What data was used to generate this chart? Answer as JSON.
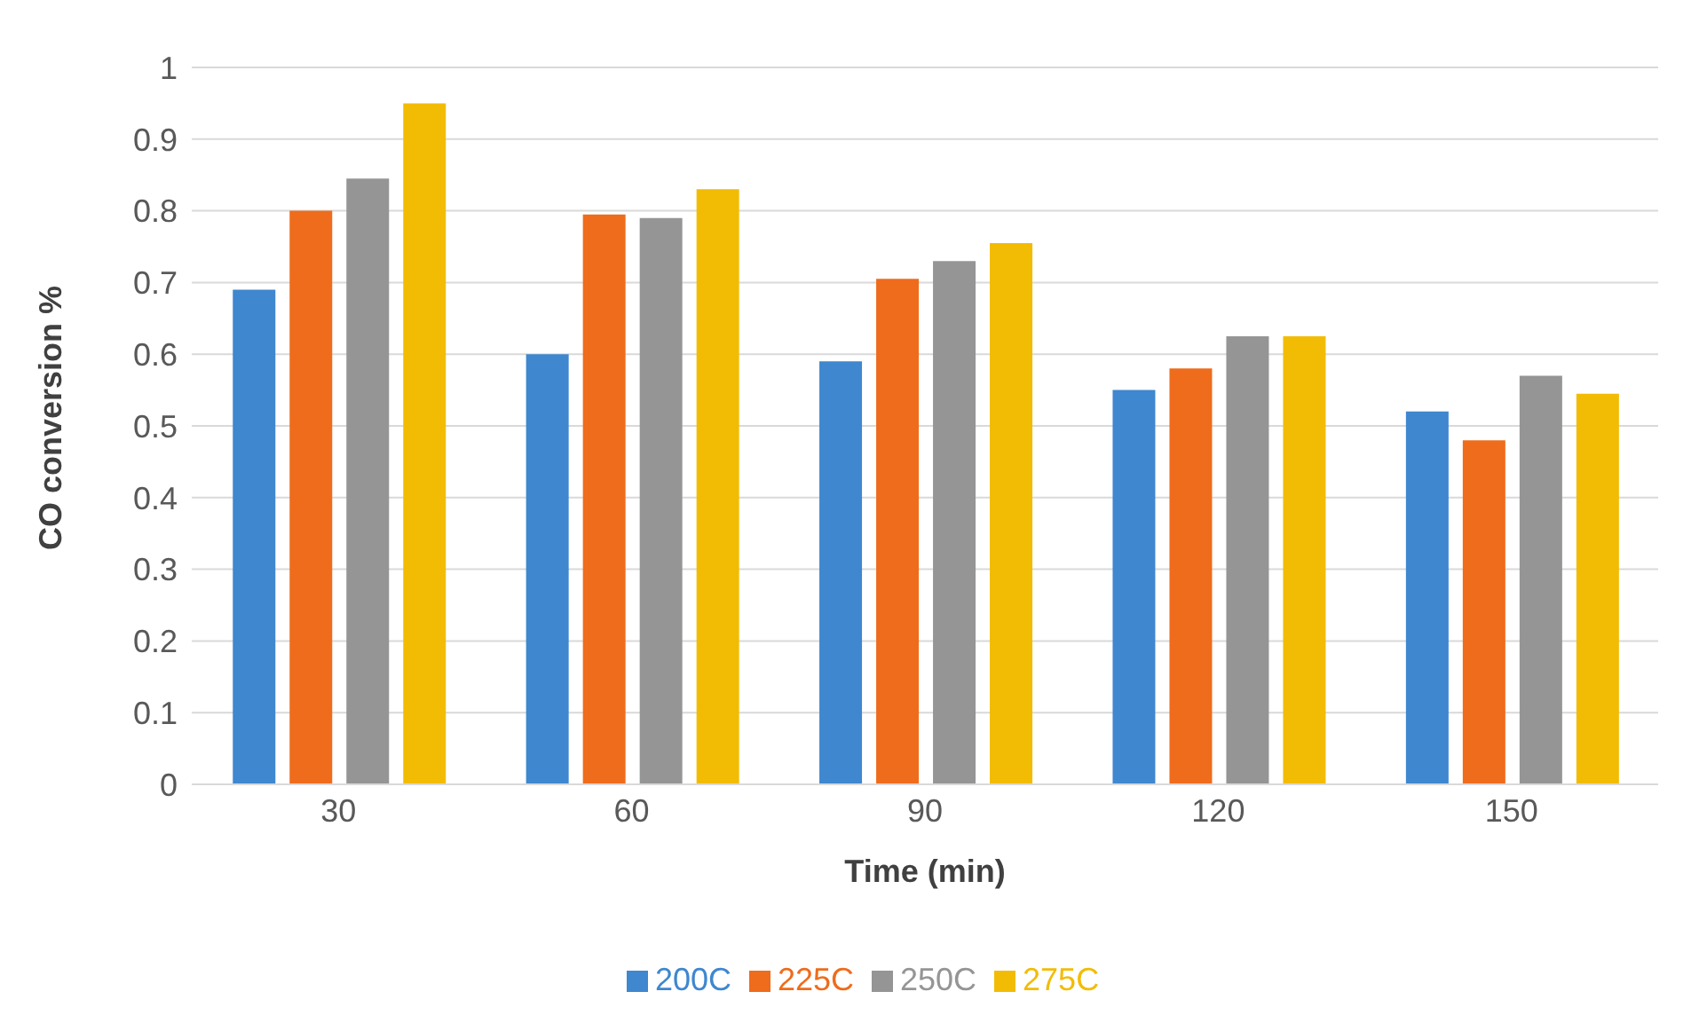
{
  "chart_data": {
    "type": "bar",
    "xlabel": "Time (min)",
    "ylabel": "CO conversion %",
    "categories": [
      "30",
      "60",
      "90",
      "120",
      "150"
    ],
    "series": [
      {
        "name": "200C",
        "color": "#3f87cf",
        "values": [
          0.69,
          0.6,
          0.59,
          0.55,
          0.52
        ]
      },
      {
        "name": "225C",
        "color": "#ee6c1c",
        "values": [
          0.8,
          0.795,
          0.705,
          0.58,
          0.48
        ]
      },
      {
        "name": "250C",
        "color": "#959595",
        "values": [
          0.845,
          0.79,
          0.73,
          0.625,
          0.57
        ]
      },
      {
        "name": "275C",
        "color": "#f2bc05",
        "values": [
          0.95,
          0.83,
          0.755,
          0.625,
          0.545
        ]
      }
    ],
    "ylim": [
      0,
      1
    ],
    "yticks": [
      0,
      0.1,
      0.2,
      0.3,
      0.4,
      0.5,
      0.6,
      0.7,
      0.8,
      0.9,
      1
    ],
    "grid": "y",
    "legend": "bottom"
  }
}
